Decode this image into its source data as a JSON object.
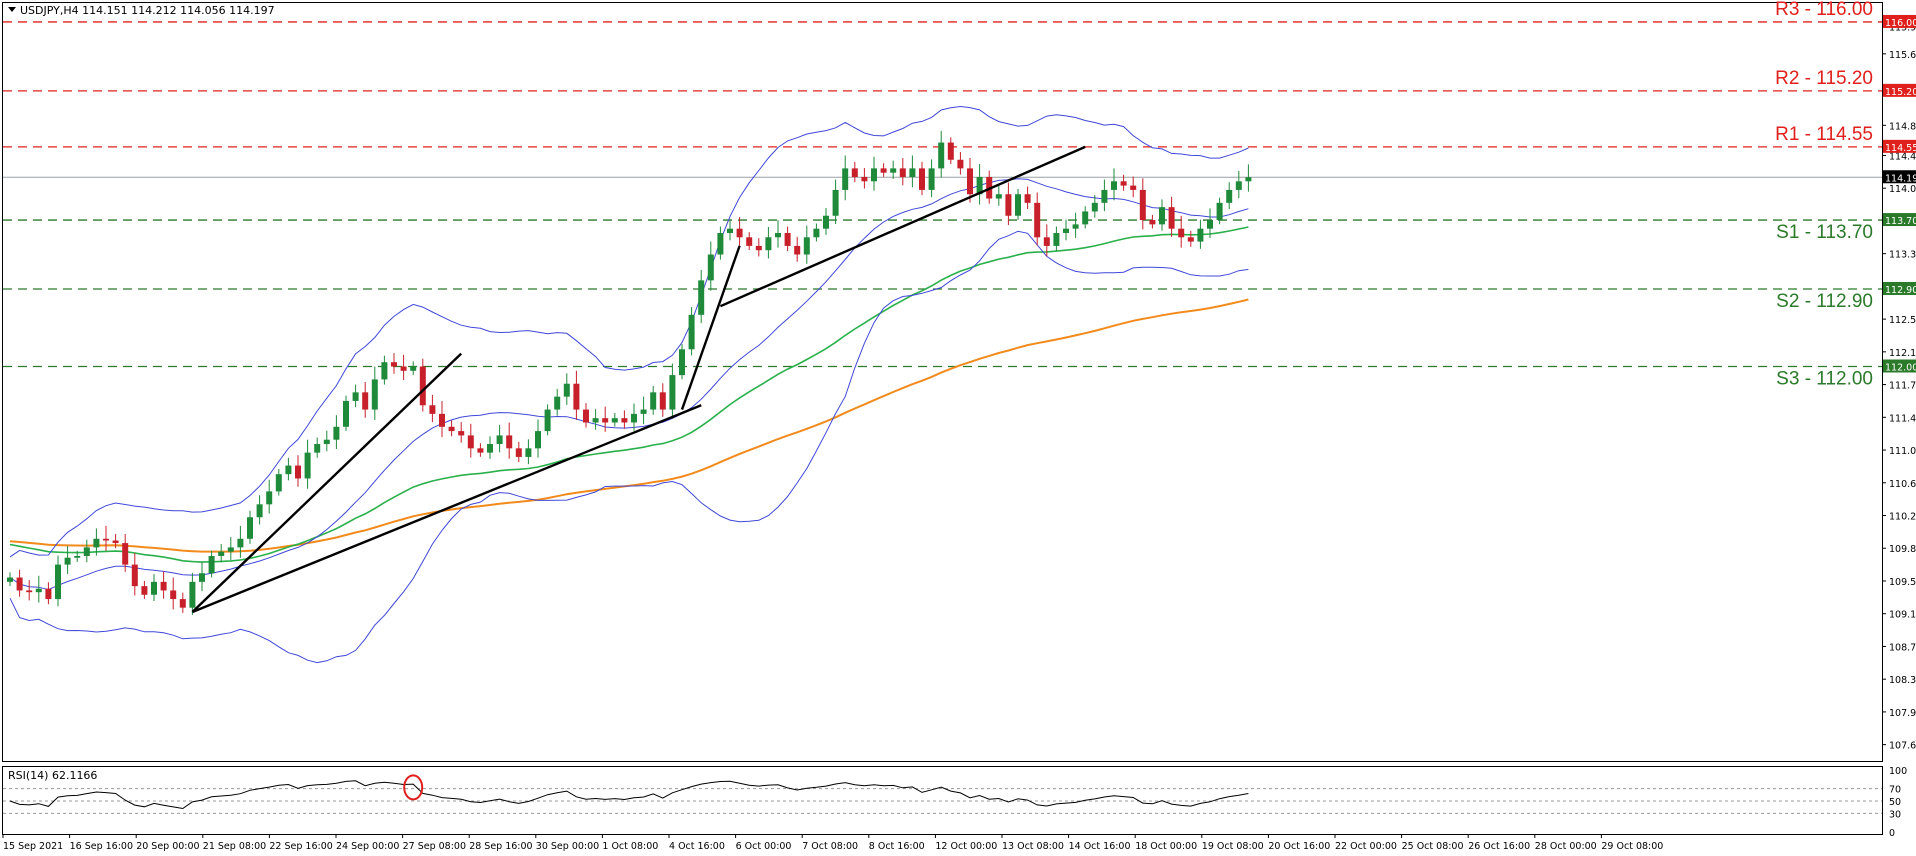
{
  "header": {
    "symbol_line": "USDJPY,H4  114.151 114.212 114.056 114.197",
    "rsi_label": "RSI(14) 62.1166"
  },
  "levels": [
    {
      "label": "R3 - 116.00",
      "price": 116.0,
      "tag": "116.000",
      "kind": "resistance"
    },
    {
      "label": "R2 - 115.20",
      "price": 115.2,
      "tag": "115.200",
      "kind": "resistance"
    },
    {
      "label": "R1 - 114.55",
      "price": 114.55,
      "tag": "114.550",
      "kind": "resistance"
    },
    {
      "label": "S1 - 113.70",
      "price": 113.7,
      "tag": "113.700",
      "kind": "support"
    },
    {
      "label": "S2 - 112.90",
      "price": 112.9,
      "tag": "112.900",
      "kind": "support"
    },
    {
      "label": "S3 - 112.00",
      "price": 112.0,
      "tag": "112.000",
      "kind": "support"
    }
  ],
  "current_price": {
    "value": 114.197,
    "tag": "114.197"
  },
  "colors": {
    "up": "#1e8a3a",
    "down": "#c8202a",
    "resistance": "#e0201c",
    "support": "#2a7a2a",
    "bollinger": "#3f48d8",
    "ma_green": "#2ab04a",
    "ma_orange": "#f28a1c",
    "trendline": "#000000",
    "rsi": "#000000",
    "rsi_marker": "#e0201c"
  },
  "chart_data": {
    "type": "candlestick",
    "symbol": "USDJPY",
    "timeframe": "H4",
    "ylim": [
      107.42,
      116.22
    ],
    "y_ticks": [
      "115.950",
      "115.630",
      "114.800",
      "114.450",
      "114.070",
      "113.680",
      "113.310",
      "112.930",
      "112.550",
      "112.170",
      "111.790",
      "111.410",
      "111.030",
      "110.650",
      "110.270",
      "109.890",
      "109.510",
      "109.130",
      "108.750",
      "108.370",
      "107.990",
      "107.610"
    ],
    "x_labels": [
      "15 Sep 2021",
      "16 Sep 16:00",
      "20 Sep 00:00",
      "21 Sep 08:00",
      "22 Sep 16:00",
      "24 Sep 00:00",
      "27 Sep 08:00",
      "28 Sep 16:00",
      "30 Sep 00:00",
      "1 Oct 08:00",
      "4 Oct 16:00",
      "6 Oct 00:00",
      "7 Oct 08:00",
      "8 Oct 16:00",
      "12 Oct 00:00",
      "13 Oct 08:00",
      "14 Oct 16:00",
      "18 Oct 00:00",
      "19 Oct 08:00",
      "20 Oct 16:00",
      "22 Oct 00:00",
      "25 Oct 08:00",
      "26 Oct 16:00",
      "28 Oct 00:00",
      "29 Oct 08:00"
    ],
    "closes": [
      109.55,
      109.4,
      109.38,
      109.42,
      109.3,
      109.7,
      109.78,
      109.8,
      109.9,
      110.0,
      109.98,
      109.95,
      109.7,
      109.45,
      109.35,
      109.5,
      109.4,
      109.3,
      109.2,
      109.5,
      109.6,
      109.8,
      109.85,
      109.9,
      110.0,
      110.25,
      110.4,
      110.55,
      110.75,
      110.85,
      110.7,
      111.0,
      111.1,
      111.15,
      111.3,
      111.6,
      111.7,
      111.5,
      111.85,
      112.05,
      112.0,
      111.95,
      112.0,
      111.55,
      111.45,
      111.3,
      111.25,
      111.2,
      111.05,
      111.0,
      111.1,
      111.2,
      111.05,
      110.95,
      111.05,
      111.25,
      111.5,
      111.65,
      111.8,
      111.5,
      111.35,
      111.4,
      111.35,
      111.4,
      111.35,
      111.45,
      111.5,
      111.7,
      111.5,
      111.9,
      112.2,
      112.6,
      113.0,
      113.3,
      113.55,
      113.6,
      113.5,
      113.4,
      113.35,
      113.5,
      113.55,
      113.4,
      113.3,
      113.5,
      113.6,
      113.75,
      114.05,
      114.3,
      114.2,
      114.15,
      114.3,
      114.25,
      114.3,
      114.2,
      114.3,
      114.05,
      114.3,
      114.6,
      114.4,
      114.3,
      114.0,
      114.2,
      113.95,
      114.0,
      113.75,
      114.0,
      113.9,
      113.5,
      113.4,
      113.55,
      113.6,
      113.65,
      113.8,
      113.9,
      114.05,
      114.15,
      114.1,
      114.05,
      113.7,
      113.65,
      113.85,
      113.6,
      113.5,
      113.45,
      113.6,
      113.7,
      113.9,
      114.05,
      114.15,
      114.197
    ],
    "rsi": {
      "period": 14,
      "value": 62.1166,
      "ylim": [
        0,
        100
      ],
      "ticks": [
        "100",
        "70",
        "50",
        "30",
        "0"
      ],
      "levels": [
        70,
        50,
        30
      ]
    }
  }
}
